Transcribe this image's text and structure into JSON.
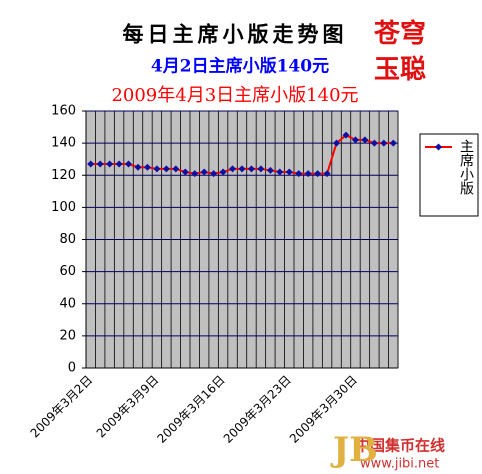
{
  "chart_data": {
    "type": "line",
    "title": "每日主席小版走势图",
    "annotations": [
      "苍穹",
      "玉聪"
    ],
    "subtitles": [
      "4月2日主席小版140元",
      "2009年4月3日主席小版140元"
    ],
    "subtitle_colors": [
      "#0000ff",
      "#ff0000"
    ],
    "categories": [
      "2009年3月2日",
      null,
      null,
      null,
      null,
      null,
      null,
      "2009年3月9日",
      null,
      null,
      null,
      null,
      null,
      null,
      "2009年3月16日",
      null,
      null,
      null,
      null,
      null,
      null,
      "2009年3月23日",
      null,
      null,
      null,
      null,
      null,
      null,
      "2009年3月30日",
      null,
      null,
      null,
      null
    ],
    "series": [
      {
        "name": "主席小版",
        "color": "#ff0000",
        "marker_color": "#1010a0",
        "values": [
          127,
          127,
          127,
          127,
          127,
          125,
          125,
          124,
          124,
          124,
          122,
          121,
          122,
          121,
          122,
          124,
          124,
          124,
          124,
          123,
          122,
          122,
          121,
          121,
          121,
          121,
          140,
          145,
          142,
          142,
          140,
          140,
          140
        ]
      }
    ],
    "ylim": [
      0,
      160
    ],
    "yticks": [
      0,
      20,
      40,
      60,
      80,
      100,
      120,
      140,
      160
    ],
    "grid": true,
    "legend": "right"
  },
  "watermark": {
    "name": "中国集币在线",
    "url": "www.jibi.net"
  }
}
